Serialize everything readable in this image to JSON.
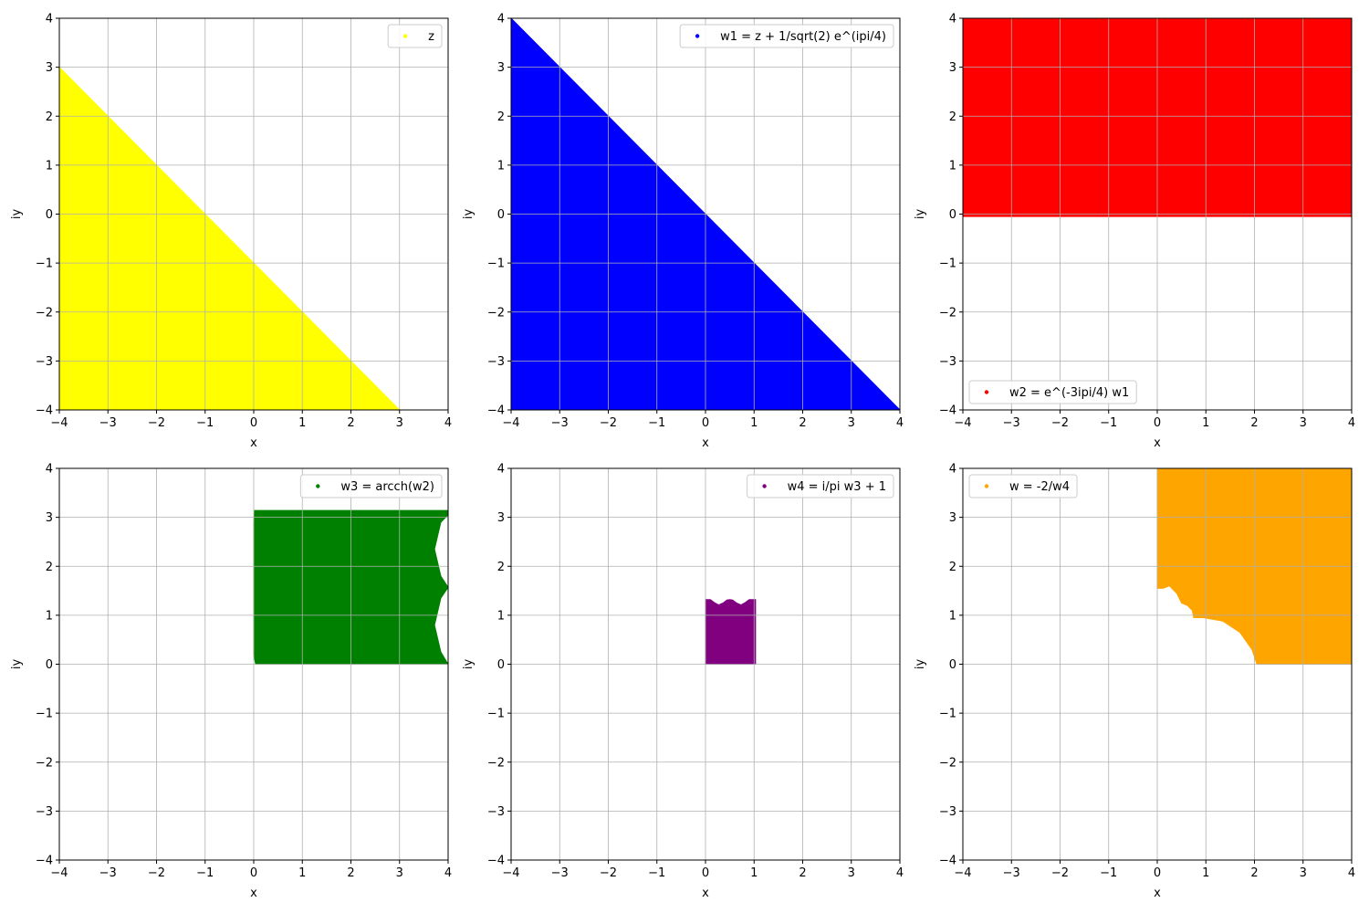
{
  "chart_data": [
    {
      "type": "scatter",
      "xlabel": "x",
      "ylabel": "iy",
      "xlim": [
        -4,
        4
      ],
      "ylim": [
        -4,
        4
      ],
      "xticks": [
        "−4",
        "−3",
        "−2",
        "−1",
        "0",
        "1",
        "2",
        "3",
        "4"
      ],
      "yticks": [
        "−4",
        "−3",
        "−2",
        "−1",
        "0",
        "1",
        "2",
        "3",
        "4"
      ],
      "grid": true,
      "legend_position": "upper right",
      "series": [
        {
          "name": "z",
          "color": "#ffff00",
          "region": [
            [
              -4,
              3
            ],
            [
              3,
              -4
            ],
            [
              -4,
              -4
            ]
          ]
        }
      ]
    },
    {
      "type": "scatter",
      "xlabel": "x",
      "ylabel": "iy",
      "xlim": [
        -4,
        4
      ],
      "ylim": [
        -4,
        4
      ],
      "xticks": [
        "−4",
        "−3",
        "−2",
        "−1",
        "0",
        "1",
        "2",
        "3",
        "4"
      ],
      "yticks": [
        "−4",
        "−3",
        "−2",
        "−1",
        "0",
        "1",
        "2",
        "3",
        "4"
      ],
      "grid": true,
      "legend_position": "upper right",
      "series": [
        {
          "name": "w1 = z + 1/sqrt(2) e^(ipi/4)",
          "color": "#0000ff",
          "region": [
            [
              -4,
              4
            ],
            [
              4,
              -4
            ],
            [
              -4,
              -4
            ]
          ]
        }
      ]
    },
    {
      "type": "scatter",
      "xlabel": "x",
      "ylabel": "iy",
      "xlim": [
        -4,
        4
      ],
      "ylim": [
        -4,
        4
      ],
      "xticks": [
        "−4",
        "−3",
        "−2",
        "−1",
        "0",
        "1",
        "2",
        "3",
        "4"
      ],
      "yticks": [
        "−4",
        "−3",
        "−2",
        "−1",
        "0",
        "1",
        "2",
        "3",
        "4"
      ],
      "grid": true,
      "legend_position": "lower left",
      "series": [
        {
          "name": "w2 = e^(-3ipi/4) w1",
          "color": "#ff0000",
          "region": [
            [
              -4,
              4
            ],
            [
              4,
              4
            ],
            [
              4,
              -0.05
            ],
            [
              -4,
              -0.05
            ]
          ]
        }
      ]
    },
    {
      "type": "scatter",
      "xlabel": "x",
      "ylabel": "iy",
      "xlim": [
        -4,
        4
      ],
      "ylim": [
        -4,
        4
      ],
      "xticks": [
        "−4",
        "−3",
        "−2",
        "−1",
        "0",
        "1",
        "2",
        "3",
        "4"
      ],
      "yticks": [
        "−4",
        "−3",
        "−2",
        "−1",
        "0",
        "1",
        "2",
        "3",
        "4"
      ],
      "grid": true,
      "legend_position": "upper right",
      "series": [
        {
          "name": "w3 = arcch(w2)",
          "color": "#008000",
          "region": [
            [
              0.02,
              3.14
            ],
            [
              4,
              3.14
            ],
            [
              4,
              3.05
            ],
            [
              3.85,
              2.9
            ],
            [
              3.72,
              2.35
            ],
            [
              3.85,
              1.8
            ],
            [
              4,
              1.57
            ],
            [
              3.85,
              1.35
            ],
            [
              3.72,
              0.8
            ],
            [
              3.85,
              0.25
            ],
            [
              4,
              0.0
            ],
            [
              0.04,
              0.0
            ],
            [
              0.0,
              0.2
            ],
            [
              0.0,
              2.9
            ]
          ]
        }
      ]
    },
    {
      "type": "scatter",
      "xlabel": "x",
      "ylabel": "iy",
      "xlim": [
        -4,
        4
      ],
      "ylim": [
        -4,
        4
      ],
      "xticks": [
        "−4",
        "−3",
        "−2",
        "−1",
        "0",
        "1",
        "2",
        "3",
        "4"
      ],
      "yticks": [
        "−4",
        "−3",
        "−2",
        "−1",
        "0",
        "1",
        "2",
        "3",
        "4"
      ],
      "grid": true,
      "legend_position": "upper right",
      "series": [
        {
          "name": "w4 = i/pi w3 + 1",
          "color": "#800080",
          "region": [
            [
              0.0,
              1.32
            ],
            [
              0.1,
              1.32
            ],
            [
              0.18,
              1.26
            ],
            [
              0.27,
              1.21
            ],
            [
              0.36,
              1.25
            ],
            [
              0.44,
              1.31
            ],
            [
              0.5,
              1.32
            ],
            [
              0.56,
              1.31
            ],
            [
              0.64,
              1.25
            ],
            [
              0.73,
              1.21
            ],
            [
              0.82,
              1.26
            ],
            [
              0.9,
              1.32
            ],
            [
              1.03,
              1.32
            ],
            [
              1.03,
              0.0
            ],
            [
              0.0,
              0.0
            ]
          ]
        }
      ]
    },
    {
      "type": "scatter",
      "xlabel": "x",
      "ylabel": "iy",
      "xlim": [
        -4,
        4
      ],
      "ylim": [
        -4,
        4
      ],
      "xticks": [
        "−4",
        "−3",
        "−2",
        "−1",
        "0",
        "1",
        "2",
        "3",
        "4"
      ],
      "yticks": [
        "−4",
        "−3",
        "−2",
        "−1",
        "0",
        "1",
        "2",
        "3",
        "4"
      ],
      "grid": true,
      "legend_position": "upper left",
      "series": [
        {
          "name": "w = -2/w4",
          "color": "#ffa500",
          "region": [
            [
              0.0,
              4
            ],
            [
              4,
              4
            ],
            [
              4,
              0.0
            ],
            [
              2.05,
              0.0
            ],
            [
              1.95,
              0.3
            ],
            [
              1.7,
              0.65
            ],
            [
              1.35,
              0.88
            ],
            [
              0.95,
              0.95
            ],
            [
              0.75,
              0.95
            ],
            [
              0.72,
              1.1
            ],
            [
              0.62,
              1.2
            ],
            [
              0.5,
              1.25
            ],
            [
              0.4,
              1.45
            ],
            [
              0.25,
              1.6
            ],
            [
              0.12,
              1.55
            ],
            [
              0.0,
              1.55
            ]
          ]
        }
      ]
    }
  ]
}
